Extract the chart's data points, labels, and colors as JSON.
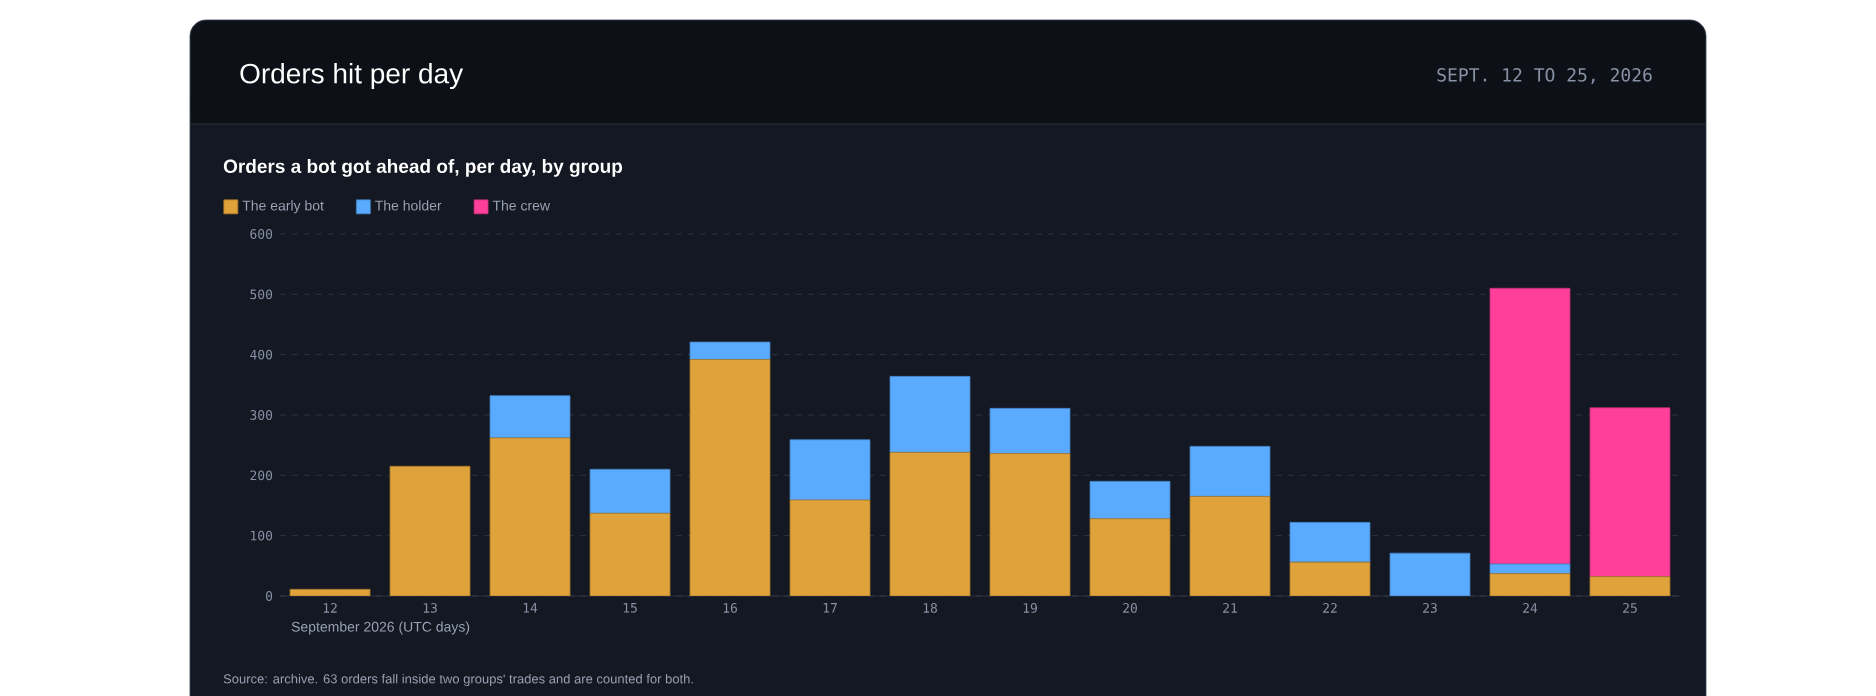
{
  "chart_data": {
    "type": "bar",
    "title": "Orders hit per day",
    "subtitle": "Orders a bot got ahead of, per day, by group",
    "xlabel": "September 2026 (UTC days)",
    "annotations": [
      "SEPT. 12 TO 25, 2026",
      "Source: archive. 63 orders fall inside two groups' trades and are counted for both."
    ],
    "categories": [
      "12",
      "13",
      "14",
      "15",
      "16",
      "17",
      "18",
      "19",
      "20",
      "21",
      "22",
      "23",
      "24",
      "25"
    ],
    "series": [
      {
        "name": "The early bot",
        "color": "#e0a23a",
        "values": [
          11,
          215,
          262,
          137,
          392,
          159,
          238,
          236,
          128,
          165,
          56,
          0,
          37,
          32
        ]
      },
      {
        "name": "The holder",
        "color": "#5aabff",
        "values": [
          0,
          0,
          70,
          73,
          29,
          100,
          126,
          75,
          62,
          83,
          66,
          71,
          16,
          0
        ]
      },
      {
        "name": "The crew",
        "color": "#ff3f9a",
        "values": [
          0,
          0,
          0,
          0,
          0,
          0,
          0,
          0,
          0,
          0,
          0,
          0,
          457,
          280
        ]
      }
    ],
    "stacked": true,
    "ylim": [
      0,
      600
    ],
    "yticks": [
      0,
      100,
      200,
      300,
      400,
      500,
      600
    ],
    "grid": "y",
    "legend": "top left"
  }
}
